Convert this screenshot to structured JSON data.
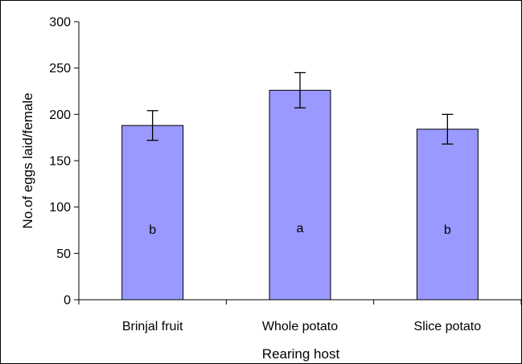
{
  "chart_data": {
    "type": "bar",
    "title": "",
    "xlabel": "Rearing host",
    "ylabel": "No.of eggs laid/female",
    "categories": [
      "Brinjal fruit",
      "Whole potato",
      "Slice potato"
    ],
    "values": [
      188,
      226,
      184
    ],
    "error": [
      16,
      19,
      16
    ],
    "labels": [
      "b",
      "a",
      "b"
    ],
    "ylim": [
      0,
      300
    ],
    "yticks": [
      0,
      50,
      100,
      150,
      200,
      250,
      300
    ],
    "bar_color": "#9999ff",
    "grid": false,
    "legend": "none"
  }
}
